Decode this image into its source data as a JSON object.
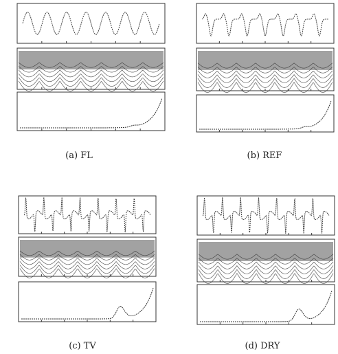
{
  "figures": [
    {
      "caption": "(a) FL"
    },
    {
      "caption": "(b) REF"
    },
    {
      "caption": "(c) TV"
    },
    {
      "caption": "(d) DRY"
    }
  ]
}
